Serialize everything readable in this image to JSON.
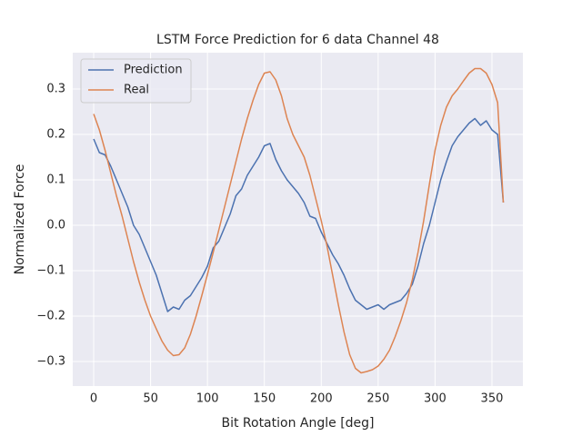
{
  "chart_data": {
    "type": "line",
    "title": "LSTM Force Prediction for 6 data Channel 48",
    "x_label": "Bit Rotation Angle [deg]",
    "y_label": "Normalized Force",
    "x": [
      0,
      5,
      10,
      15,
      20,
      25,
      30,
      35,
      40,
      45,
      50,
      55,
      60,
      65,
      70,
      75,
      80,
      85,
      90,
      95,
      100,
      105,
      110,
      115,
      120,
      125,
      130,
      135,
      140,
      145,
      150,
      155,
      160,
      165,
      170,
      175,
      180,
      185,
      190,
      195,
      200,
      205,
      210,
      215,
      220,
      225,
      230,
      235,
      240,
      245,
      250,
      255,
      260,
      265,
      270,
      275,
      280,
      285,
      290,
      295,
      300,
      305,
      310,
      315,
      320,
      325,
      330,
      335,
      340,
      345,
      350,
      355,
      360
    ],
    "series": [
      {
        "name": "Prediction",
        "color": "#4c72b0",
        "values": [
          0.19,
          0.16,
          0.155,
          0.13,
          0.1,
          0.07,
          0.04,
          0.0,
          -0.02,
          -0.05,
          -0.08,
          -0.11,
          -0.15,
          -0.19,
          -0.18,
          -0.185,
          -0.165,
          -0.155,
          -0.135,
          -0.115,
          -0.09,
          -0.05,
          -0.035,
          -0.005,
          0.025,
          0.065,
          0.08,
          0.11,
          0.13,
          0.15,
          0.175,
          0.18,
          0.145,
          0.12,
          0.1,
          0.085,
          0.07,
          0.05,
          0.02,
          0.015,
          -0.015,
          -0.04,
          -0.065,
          -0.085,
          -0.11,
          -0.14,
          -0.165,
          -0.175,
          -0.185,
          -0.18,
          -0.175,
          -0.185,
          -0.175,
          -0.17,
          -0.165,
          -0.15,
          -0.13,
          -0.09,
          -0.04,
          0.0,
          0.05,
          0.1,
          0.14,
          0.175,
          0.195,
          0.21,
          0.225,
          0.235,
          0.22,
          0.23,
          0.21,
          0.2,
          0.05
        ]
      },
      {
        "name": "Real",
        "color": "#dd8452",
        "values": [
          0.245,
          0.21,
          0.165,
          0.115,
          0.065,
          0.02,
          -0.03,
          -0.08,
          -0.125,
          -0.165,
          -0.2,
          -0.228,
          -0.255,
          -0.275,
          -0.287,
          -0.285,
          -0.27,
          -0.24,
          -0.2,
          -0.155,
          -0.108,
          -0.06,
          -0.01,
          0.04,
          0.09,
          0.14,
          0.19,
          0.235,
          0.275,
          0.31,
          0.335,
          0.338,
          0.32,
          0.285,
          0.235,
          0.2,
          0.175,
          0.15,
          0.11,
          0.06,
          0.01,
          -0.045,
          -0.11,
          -0.175,
          -0.235,
          -0.285,
          -0.315,
          -0.325,
          -0.322,
          -0.318,
          -0.31,
          -0.295,
          -0.275,
          -0.245,
          -0.21,
          -0.17,
          -0.12,
          -0.06,
          0.01,
          0.09,
          0.165,
          0.22,
          0.26,
          0.285,
          0.3,
          0.318,
          0.335,
          0.345,
          0.345,
          0.335,
          0.31,
          0.27,
          0.05
        ]
      }
    ],
    "xlim": [
      -18.4,
      377.2
    ],
    "ylim": [
      -0.354,
      0.38
    ],
    "xticks": [
      0,
      50,
      100,
      150,
      200,
      250,
      300,
      350
    ],
    "yticks": [
      {
        "value": -0.3,
        "label": "−0.3"
      },
      {
        "value": -0.2,
        "label": "−0.2"
      },
      {
        "value": -0.1,
        "label": "−0.1"
      },
      {
        "value": 0,
        "label": "0.0"
      },
      0.1,
      0.2,
      0.3
    ],
    "grid": true,
    "legend": "upper left"
  }
}
